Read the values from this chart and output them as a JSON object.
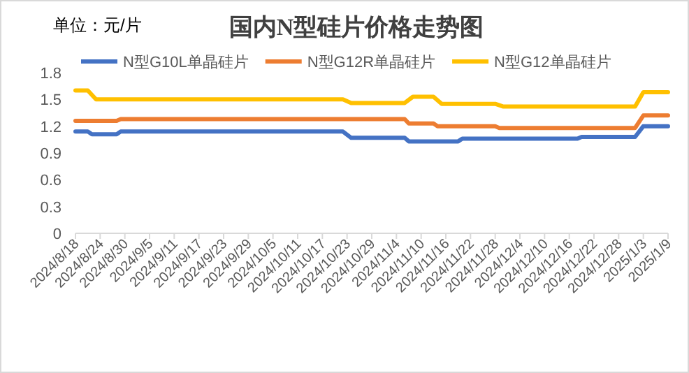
{
  "chart_data": {
    "type": "line",
    "title": "国内N型硅片价格走势图",
    "annotations": [
      "单位：元/片"
    ],
    "xlim": [
      "2024-08-18",
      "2025-01-09"
    ],
    "xticks": [
      {
        "value": "2024-08-18",
        "label": "2024/8/18"
      },
      {
        "value": "2024-08-24",
        "label": "2024/8/24"
      },
      {
        "value": "2024-08-30",
        "label": "2024/8/30"
      },
      {
        "value": "2024-09-05",
        "label": "2024/9/5"
      },
      {
        "value": "2024-09-11",
        "label": "2024/9/11"
      },
      {
        "value": "2024-09-17",
        "label": "2024/9/17"
      },
      {
        "value": "2024-09-23",
        "label": "2024/9/23"
      },
      {
        "value": "2024-09-29",
        "label": "2024/9/29"
      },
      {
        "value": "2024-10-05",
        "label": "2024/10/5"
      },
      {
        "value": "2024-10-11",
        "label": "2024/10/11"
      },
      {
        "value": "2024-10-17",
        "label": "2024/10/17"
      },
      {
        "value": "2024-10-23",
        "label": "2024/10/23"
      },
      {
        "value": "2024-10-29",
        "label": "2024/10/29"
      },
      {
        "value": "2024-11-04",
        "label": "2024/11/4"
      },
      {
        "value": "2024-11-10",
        "label": "2024/11/10"
      },
      {
        "value": "2024-11-16",
        "label": "2024/11/16"
      },
      {
        "value": "2024-11-22",
        "label": "2024/11/22"
      },
      {
        "value": "2024-11-28",
        "label": "2024/11/28"
      },
      {
        "value": "2024-12-04",
        "label": "2024/12/4"
      },
      {
        "value": "2024-12-10",
        "label": "2024/12/10"
      },
      {
        "value": "2024-12-16",
        "label": "2024/12/16"
      },
      {
        "value": "2024-12-22",
        "label": "2024/12/22"
      },
      {
        "value": "2024-12-28",
        "label": "2024/12/28"
      },
      {
        "value": "2025-01-03",
        "label": "2025/1/3"
      },
      {
        "value": "2025-01-09",
        "label": "2025/1/9"
      }
    ],
    "ylim": [
      0,
      1.8
    ],
    "yticks": [
      0,
      0.3,
      0.6,
      0.9,
      1.2,
      1.5,
      1.8
    ],
    "grid": false,
    "legend": "top",
    "marker": "none",
    "line_style": "solid",
    "series": [
      {
        "name": "N型G10L单晶硅片",
        "color": "#4472c4",
        "x": [
          "2024-08-18",
          "2024-08-21",
          "2024-08-22",
          "2024-08-28",
          "2024-08-29",
          "2024-10-22",
          "2024-10-24",
          "2024-11-06",
          "2024-11-07",
          "2024-11-19",
          "2024-11-20",
          "2024-12-18",
          "2024-12-19",
          "2025-01-01",
          "2025-01-03",
          "2025-01-09"
        ],
        "values": [
          1.14,
          1.14,
          1.11,
          1.11,
          1.14,
          1.14,
          1.07,
          1.07,
          1.03,
          1.03,
          1.06,
          1.06,
          1.08,
          1.08,
          1.2,
          1.2
        ]
      },
      {
        "name": "N型G12R单晶硅片",
        "color": "#ed7d31",
        "x": [
          "2024-08-18",
          "2024-08-28",
          "2024-08-29",
          "2024-11-06",
          "2024-11-07",
          "2024-11-13",
          "2024-11-14",
          "2024-11-28",
          "2024-11-29",
          "2025-01-01",
          "2025-01-03",
          "2025-01-09"
        ],
        "values": [
          1.26,
          1.26,
          1.28,
          1.28,
          1.23,
          1.23,
          1.2,
          1.2,
          1.18,
          1.18,
          1.32,
          1.32
        ]
      },
      {
        "name": "N型G12单晶硅片",
        "color": "#ffc000",
        "x": [
          "2024-08-18",
          "2024-08-21",
          "2024-08-23",
          "2024-10-22",
          "2024-10-24",
          "2024-11-06",
          "2024-11-08",
          "2024-11-13",
          "2024-11-15",
          "2024-11-28",
          "2024-11-30",
          "2025-01-01",
          "2025-01-03",
          "2025-01-09"
        ],
        "values": [
          1.6,
          1.6,
          1.5,
          1.5,
          1.46,
          1.46,
          1.53,
          1.53,
          1.45,
          1.45,
          1.42,
          1.42,
          1.58,
          1.58
        ]
      }
    ]
  }
}
